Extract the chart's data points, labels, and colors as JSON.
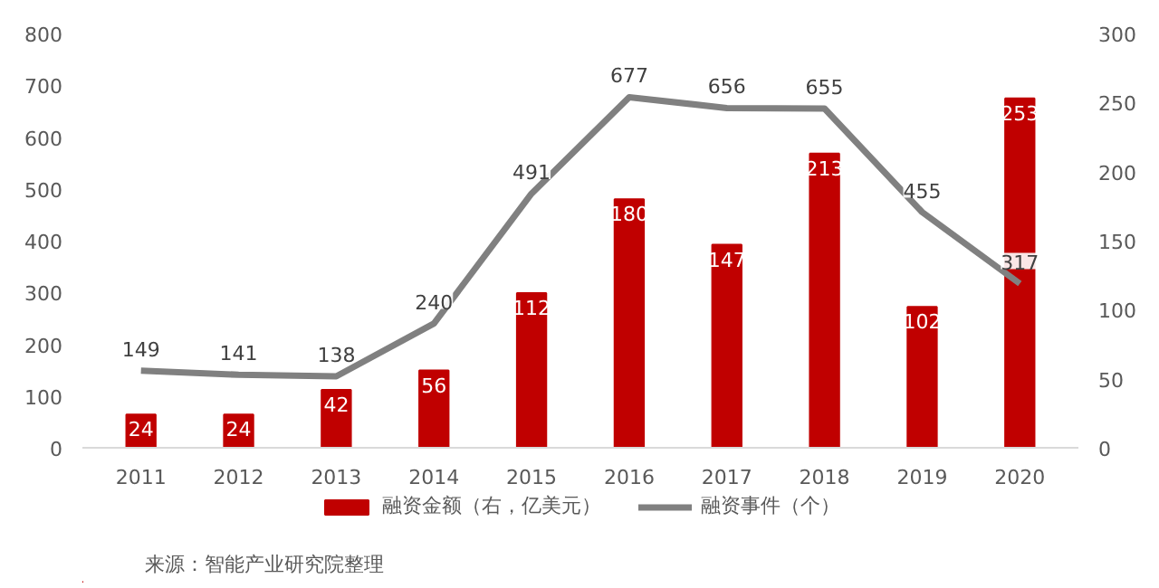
{
  "chart_data": {
    "type": "bar",
    "categories": [
      "2011",
      "2012",
      "2013",
      "2014",
      "2015",
      "2016",
      "2017",
      "2018",
      "2019",
      "2020"
    ],
    "series": [
      {
        "name": "融资金额（右，亿美元）",
        "axis": "y2",
        "color": "#c00000",
        "values": [
          24,
          24,
          42,
          56,
          112,
          180,
          147,
          213,
          102,
          253
        ]
      },
      {
        "name": "融资事件（个）",
        "type": "line",
        "axis": "y",
        "color": "#808080",
        "values": [
          149,
          141,
          138,
          240,
          491,
          677,
          656,
          655,
          455,
          317
        ]
      }
    ],
    "ylim": [
      0,
      800
    ],
    "yticks": [
      0,
      100,
      200,
      300,
      400,
      500,
      600,
      700,
      800
    ],
    "y2lim": [
      0,
      300
    ],
    "y2ticks": [
      0,
      50,
      100,
      150,
      200,
      250,
      300
    ],
    "data_labels": true,
    "legend": "bottom",
    "grid": false,
    "marker": "none",
    "line_style": "solid",
    "annotations": [
      "来源：智能产业研究院整理"
    ]
  }
}
